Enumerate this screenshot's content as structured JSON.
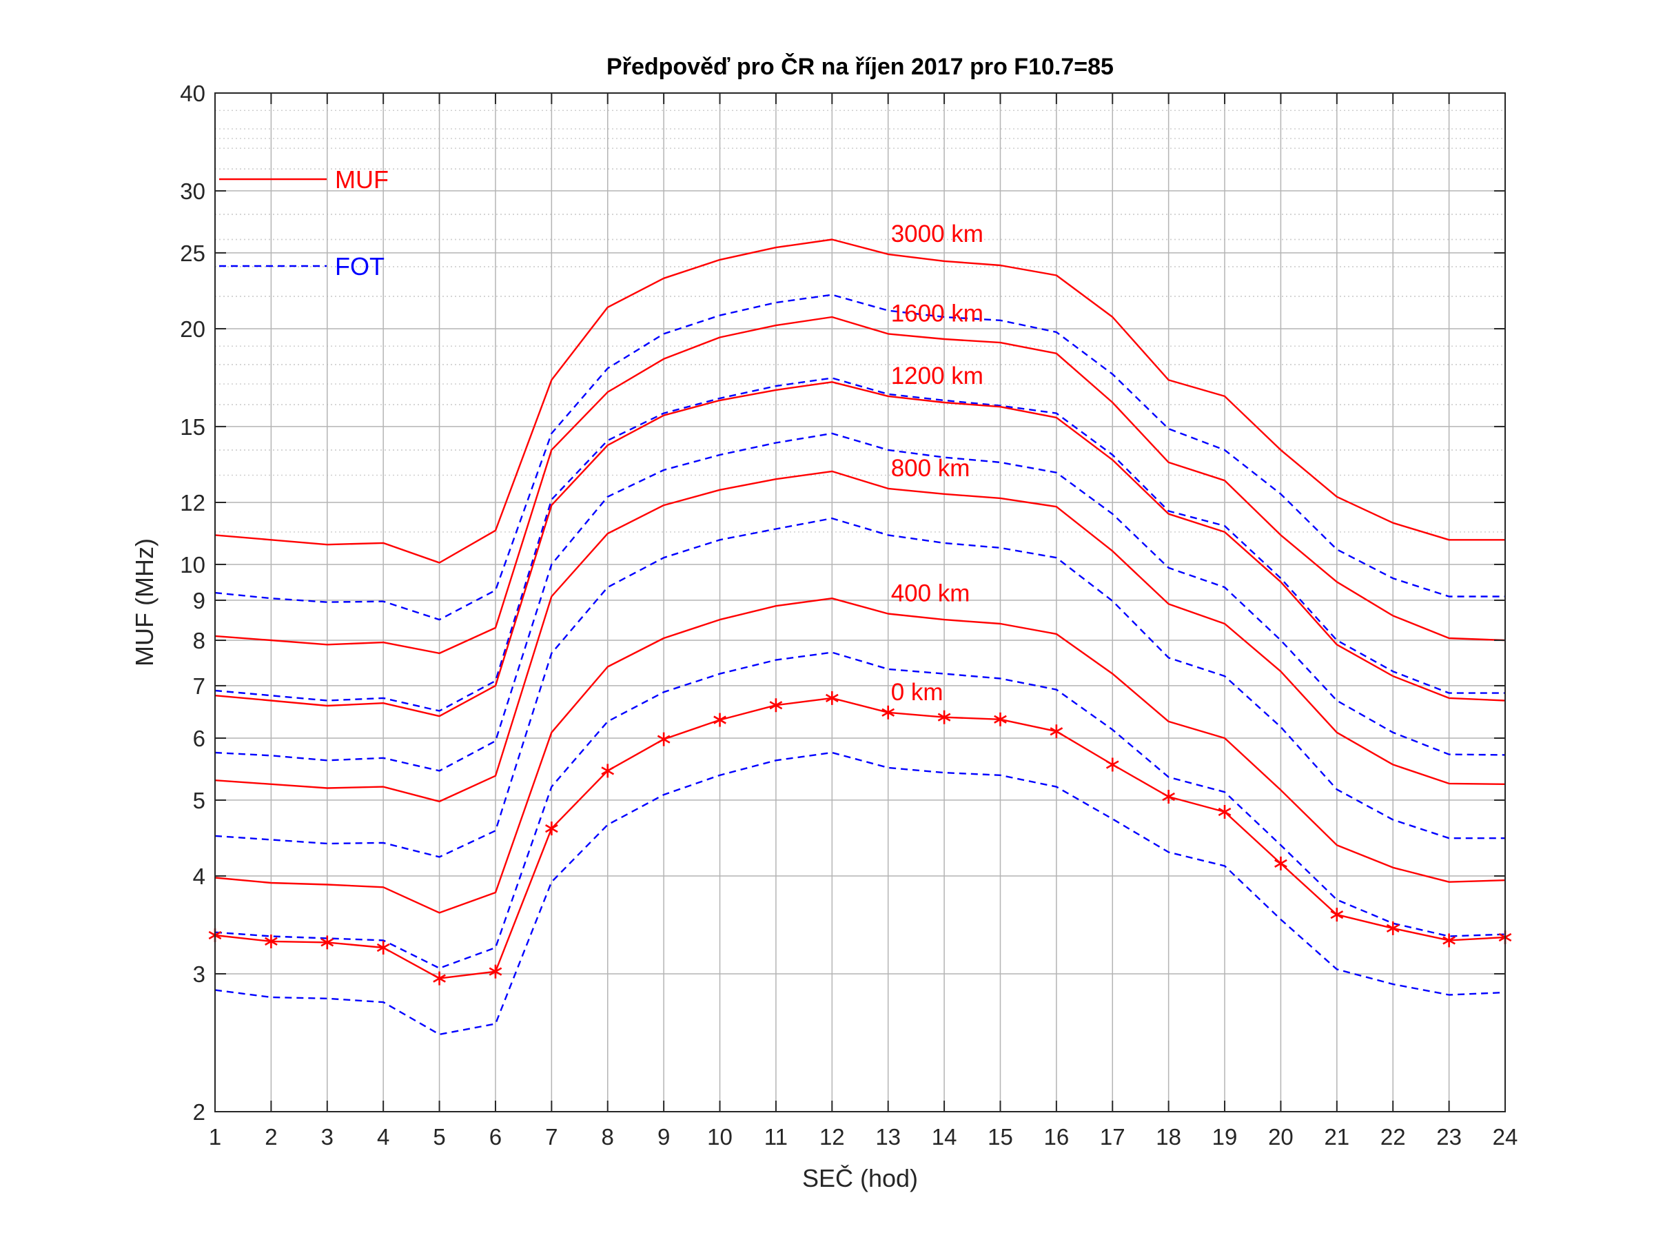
{
  "chart_data": {
    "type": "line",
    "title": "Předpověď pro ČR na říjen 2017 pro F10.7=85",
    "xlabel": "SEČ (hod)",
    "ylabel": "MUF (MHz)",
    "xlim": [
      1,
      24
    ],
    "ylim": [
      2,
      40
    ],
    "yscale": "log",
    "grid": "on",
    "x": [
      1,
      2,
      3,
      4,
      5,
      6,
      7,
      8,
      9,
      10,
      11,
      12,
      13,
      14,
      15,
      16,
      17,
      18,
      19,
      20,
      21,
      22,
      23,
      24
    ],
    "xticks": [
      "1",
      "2",
      "3",
      "4",
      "5",
      "6",
      "7",
      "8",
      "9",
      "10",
      "11",
      "12",
      "13",
      "14",
      "15",
      "16",
      "17",
      "18",
      "19",
      "20",
      "21",
      "22",
      "23",
      "24"
    ],
    "yticks": [
      2,
      3,
      4,
      5,
      6,
      7,
      8,
      9,
      10,
      12,
      15,
      20,
      25,
      30,
      40
    ],
    "yticklabels": [
      "2",
      "3",
      "4",
      "5",
      "6",
      "7",
      "8",
      "9",
      "10",
      "12",
      "15",
      "20",
      "25",
      "30",
      "40"
    ],
    "colors": {
      "muf": "#ff0000",
      "fot": "#0000ff",
      "grid": "#b4b4b4",
      "minor_grid": "#cfcfcf",
      "axis": "#262626"
    },
    "legend": {
      "placement": "top-left",
      "entries": [
        {
          "label": "MUF",
          "style": "solid",
          "color": "#ff0000"
        },
        {
          "label": "FOT",
          "style": "dashed",
          "color": "#0000ff"
        }
      ]
    },
    "series": [
      {
        "kind": "MUF",
        "label": "3000 km",
        "label_x": 13,
        "values": [
          10.9,
          10.75,
          10.6,
          10.65,
          10.05,
          11.05,
          17.2,
          21.3,
          23.2,
          24.5,
          25.4,
          26.0,
          24.9,
          24.4,
          24.1,
          23.4,
          20.7,
          17.2,
          16.4,
          14.0,
          12.2,
          11.3,
          10.75,
          10.75
        ]
      },
      {
        "kind": "FOT",
        "label": "",
        "values": [
          9.2,
          9.05,
          8.95,
          8.97,
          8.5,
          9.27,
          14.7,
          17.8,
          19.7,
          20.8,
          21.6,
          22.1,
          21.1,
          20.7,
          20.5,
          19.8,
          17.5,
          14.9,
          14.0,
          12.3,
          10.45,
          9.6,
          9.1,
          9.1
        ]
      },
      {
        "kind": "MUF",
        "label": "1600 km",
        "label_x": 13,
        "values": [
          8.1,
          8.0,
          7.9,
          7.95,
          7.7,
          8.3,
          14.0,
          16.6,
          18.3,
          19.5,
          20.2,
          20.7,
          19.7,
          19.4,
          19.2,
          18.6,
          16.1,
          13.5,
          12.8,
          10.9,
          9.5,
          8.6,
          8.05,
          8.0
        ]
      },
      {
        "kind": "FOT",
        "label": "",
        "values": [
          6.9,
          6.8,
          6.7,
          6.75,
          6.5,
          7.1,
          12.1,
          14.4,
          15.6,
          16.3,
          16.9,
          17.3,
          16.5,
          16.2,
          15.95,
          15.6,
          13.8,
          11.7,
          11.2,
          9.6,
          8.0,
          7.3,
          6.85,
          6.85
        ]
      },
      {
        "kind": "MUF",
        "label": "1200 km",
        "label_x": 13,
        "values": [
          6.8,
          6.7,
          6.6,
          6.65,
          6.4,
          7.0,
          11.9,
          14.2,
          15.5,
          16.2,
          16.7,
          17.1,
          16.4,
          16.1,
          15.9,
          15.4,
          13.6,
          11.6,
          11.0,
          9.5,
          7.9,
          7.2,
          6.75,
          6.7
        ]
      },
      {
        "kind": "FOT",
        "label": "",
        "values": [
          5.75,
          5.7,
          5.62,
          5.66,
          5.45,
          5.95,
          10.0,
          12.2,
          13.2,
          13.8,
          14.3,
          14.7,
          14.0,
          13.7,
          13.5,
          13.1,
          11.6,
          9.9,
          9.35,
          8.0,
          6.7,
          6.1,
          5.72,
          5.71
        ]
      },
      {
        "kind": "MUF",
        "label": "800 km",
        "label_x": 13,
        "values": [
          5.3,
          5.24,
          5.18,
          5.2,
          4.98,
          5.37,
          9.1,
          10.95,
          11.9,
          12.45,
          12.85,
          13.15,
          12.5,
          12.3,
          12.15,
          11.85,
          10.4,
          8.9,
          8.4,
          7.3,
          6.1,
          5.55,
          5.25,
          5.24
        ]
      },
      {
        "kind": "FOT",
        "label": "",
        "values": [
          4.5,
          4.45,
          4.4,
          4.41,
          4.23,
          4.57,
          7.7,
          9.35,
          10.2,
          10.75,
          11.1,
          11.45,
          10.9,
          10.65,
          10.5,
          10.2,
          8.98,
          7.6,
          7.2,
          6.2,
          5.16,
          4.72,
          4.47,
          4.47
        ]
      },
      {
        "kind": "MUF",
        "label": "400 km",
        "label_x": 13,
        "values": [
          3.98,
          3.92,
          3.9,
          3.87,
          3.59,
          3.81,
          6.1,
          7.4,
          8.05,
          8.5,
          8.85,
          9.05,
          8.65,
          8.5,
          8.4,
          8.15,
          7.25,
          6.3,
          6.0,
          5.15,
          4.38,
          4.1,
          3.93,
          3.95
        ]
      },
      {
        "kind": "FOT",
        "label": "",
        "values": [
          3.39,
          3.35,
          3.33,
          3.31,
          3.05,
          3.24,
          5.2,
          6.3,
          6.87,
          7.25,
          7.55,
          7.72,
          7.35,
          7.25,
          7.15,
          6.92,
          6.15,
          5.35,
          5.12,
          4.38,
          3.73,
          3.48,
          3.35,
          3.37
        ]
      },
      {
        "kind": "MUF",
        "label": "0 km",
        "label_x": 13,
        "markers": "star",
        "values": [
          3.36,
          3.3,
          3.29,
          3.24,
          2.96,
          3.02,
          4.6,
          5.45,
          5.98,
          6.33,
          6.61,
          6.75,
          6.47,
          6.38,
          6.34,
          6.12,
          5.55,
          5.05,
          4.83,
          4.15,
          3.57,
          3.43,
          3.31,
          3.34
        ]
      },
      {
        "kind": "FOT",
        "label": "",
        "values": [
          2.86,
          2.8,
          2.79,
          2.76,
          2.51,
          2.59,
          3.93,
          4.65,
          5.08,
          5.38,
          5.62,
          5.75,
          5.5,
          5.42,
          5.38,
          5.2,
          4.73,
          4.29,
          4.12,
          3.52,
          3.04,
          2.91,
          2.82,
          2.84
        ]
      }
    ]
  }
}
